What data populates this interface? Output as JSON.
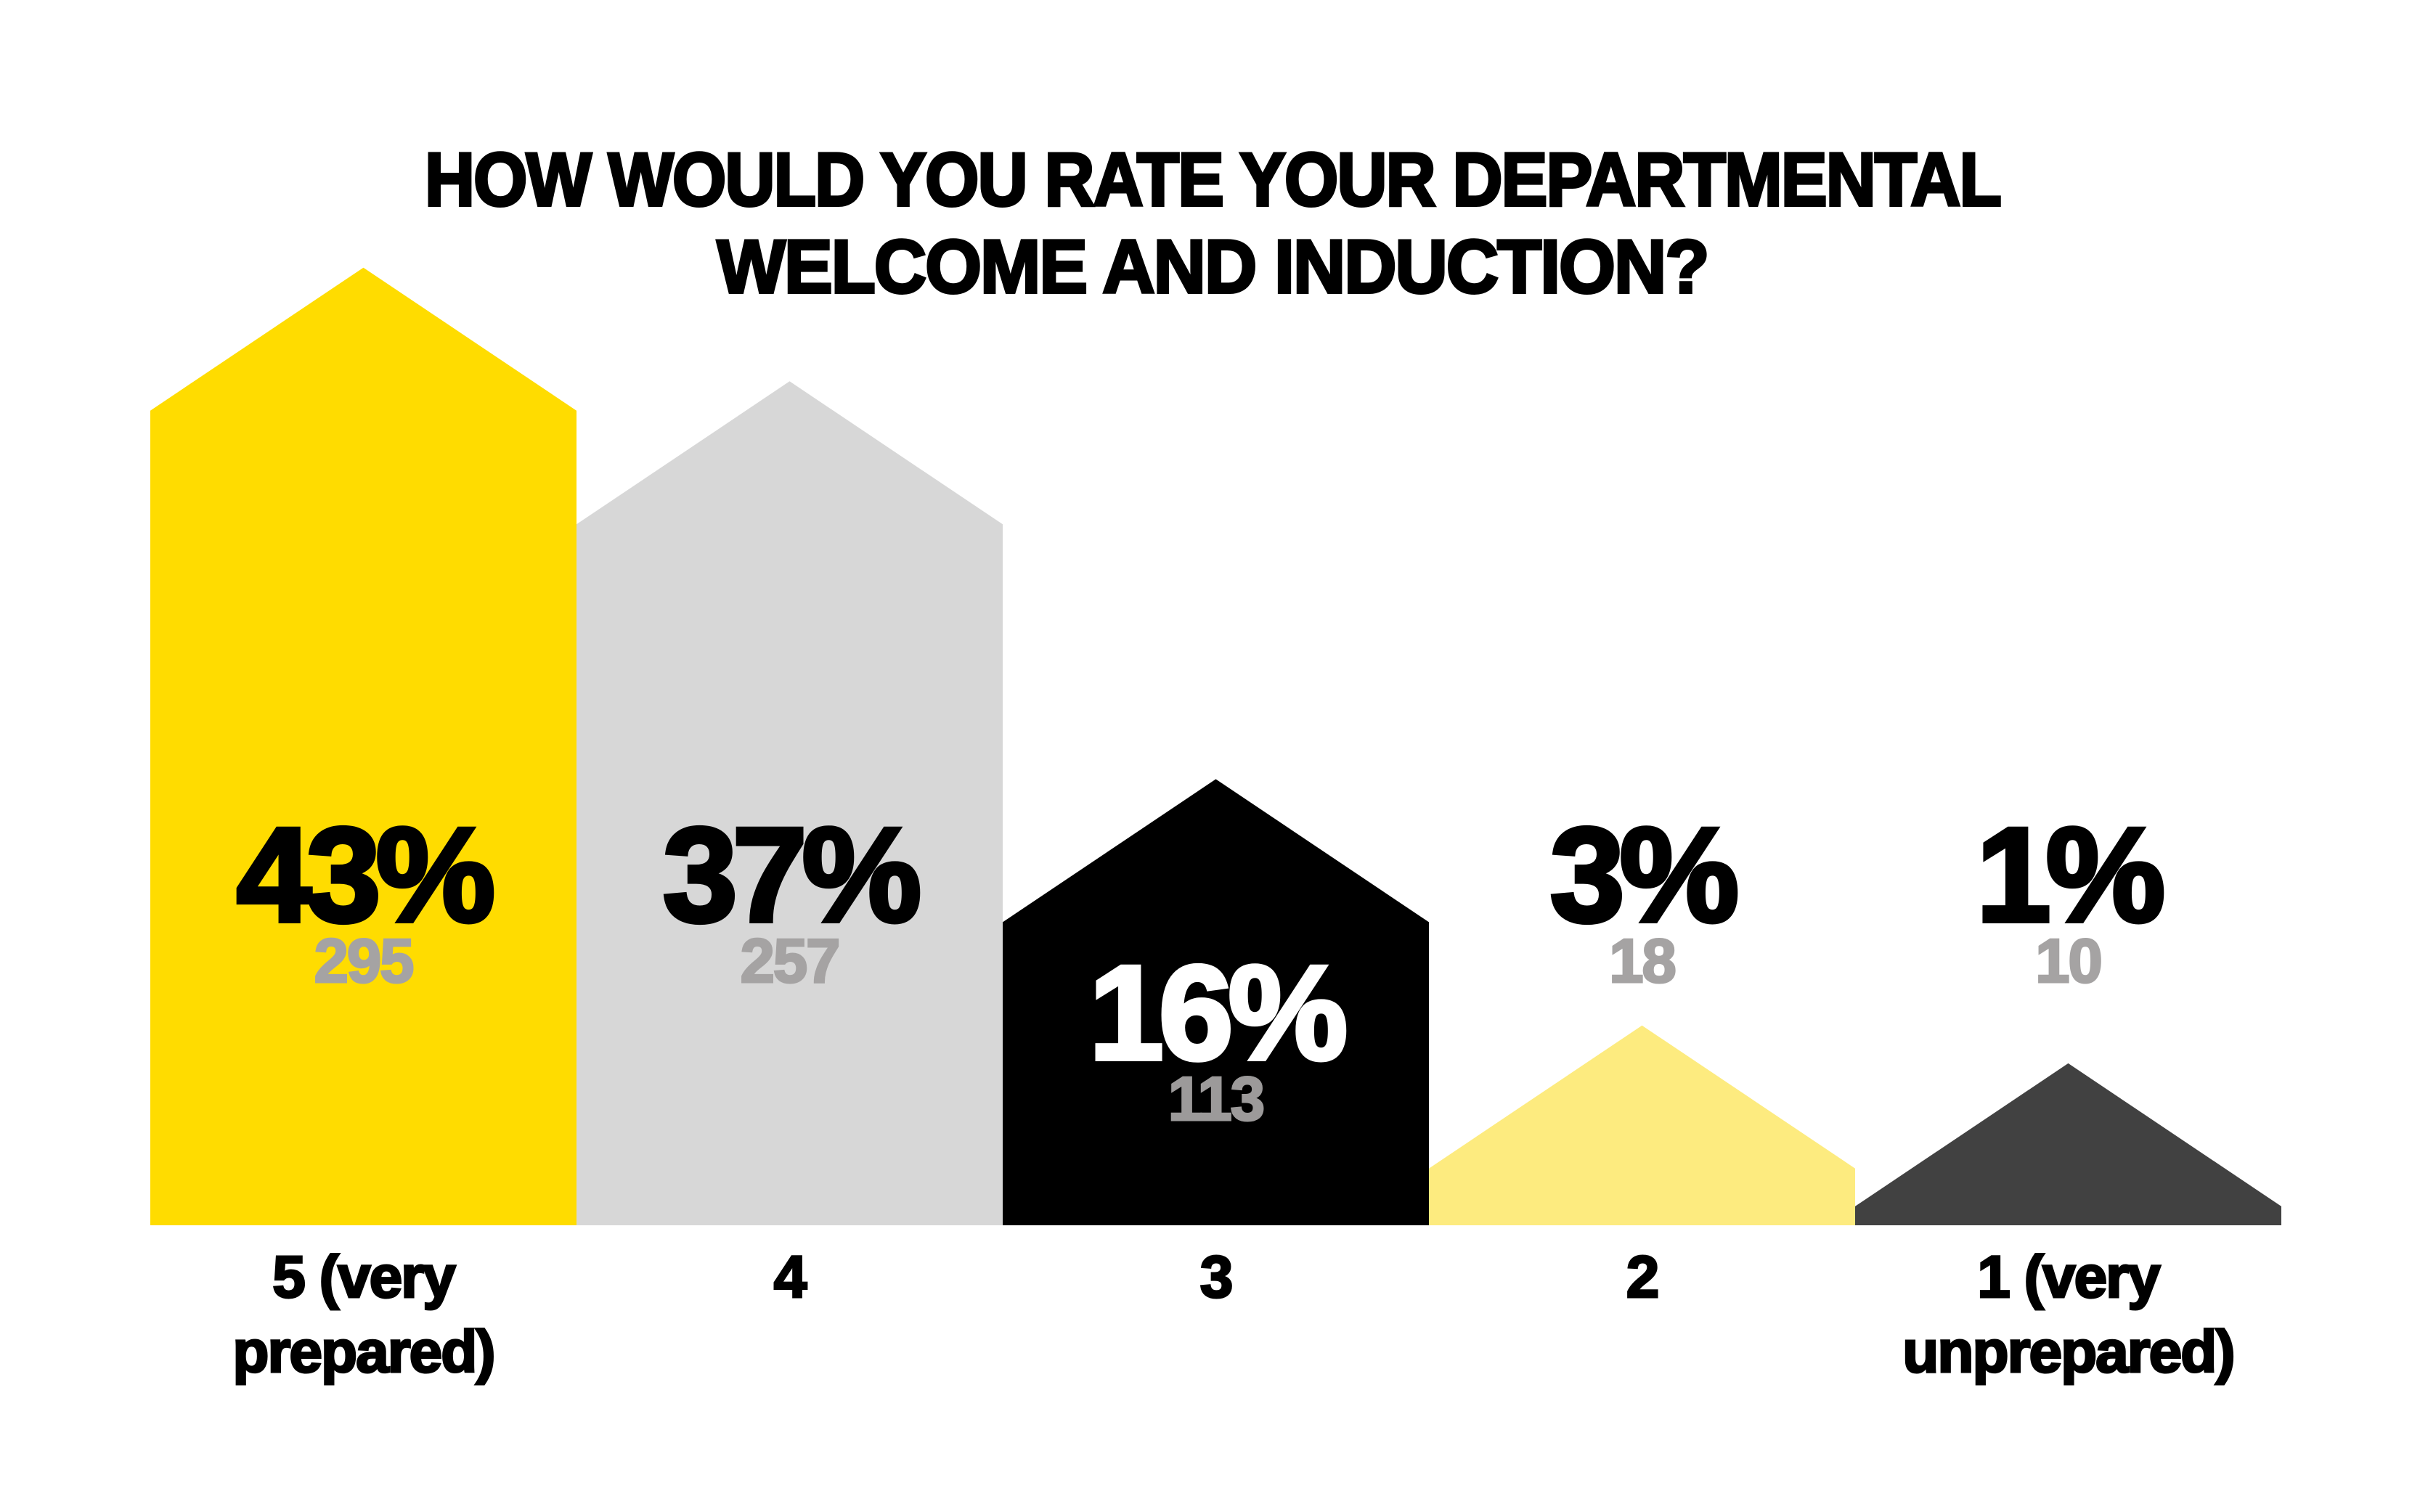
{
  "page": {
    "background_color": "#FFFFFF"
  },
  "title": {
    "line1": "HOW WOULD YOU RATE YOUR DEPARTMENTAL",
    "line2": "WELCOME AND INDUCTION?",
    "color": "#000000"
  },
  "chart_data": {
    "type": "bar",
    "style": "pictogram-arrow-house-bars",
    "title": "HOW WOULD YOU RATE YOUR DEPARTMENTAL WELCOME AND INDUCTION?",
    "xlabel": "",
    "ylabel": "",
    "grid": false,
    "axis_lines": false,
    "legend_position": "none",
    "categories": [
      "5 (very prepared)",
      "4",
      "3",
      "2",
      "1 (very unprepared)"
    ],
    "series": [
      {
        "name": "Percent of respondents",
        "unit": "%",
        "values": [
          43,
          37,
          16,
          3,
          1
        ]
      },
      {
        "name": "Respondent count",
        "values": [
          295,
          257,
          113,
          18,
          10
        ]
      }
    ],
    "bars": [
      {
        "key": "5-very-prepared",
        "category_lines": [
          "5 (very",
          "prepared)"
        ],
        "percent": 43,
        "percent_label": "43%",
        "count": 295,
        "count_label": "295",
        "fill": "#FFDC00",
        "percent_color": "#000000",
        "count_color": "#A5A3A3",
        "label_placement": "inside",
        "label_center_y": {
          "percent": 1203,
          "count": 1322
        }
      },
      {
        "key": "4",
        "category_lines": [
          "4"
        ],
        "percent": 37,
        "percent_label": "37%",
        "count": 257,
        "count_label": "257",
        "fill": "#D7D7D7",
        "percent_color": "#000000",
        "count_color": "#A5A3A3",
        "label_placement": "inside",
        "label_center_y": {
          "percent": 1203,
          "count": 1322
        }
      },
      {
        "key": "3",
        "category_lines": [
          "3"
        ],
        "percent": 16,
        "percent_label": "16%",
        "count": 113,
        "count_label": "113",
        "fill": "#000000",
        "percent_color": "#FFFFFF",
        "count_color": "#9C9A9A",
        "label_placement": "inside",
        "label_center_y": {
          "percent": 1393,
          "count": 1512
        }
      },
      {
        "key": "2",
        "category_lines": [
          "2"
        ],
        "percent": 3,
        "percent_label": "3%",
        "count": 18,
        "count_label": "18",
        "fill": "#FDEB7F",
        "percent_color": "#000000",
        "count_color": "#A5A3A3",
        "label_placement": "above",
        "label_center_y": {
          "percent": 1203,
          "count": 1322
        }
      },
      {
        "key": "1-very-unprepared",
        "category_lines": [
          "1 (very",
          "unprepared)"
        ],
        "percent": 1,
        "percent_label": "1%",
        "count": 10,
        "count_label": "10",
        "fill": "#414141",
        "percent_color": "#000000",
        "count_color": "#A5A3A3",
        "label_placement": "above",
        "label_center_y": {
          "percent": 1203,
          "count": 1322
        }
      }
    ]
  }
}
